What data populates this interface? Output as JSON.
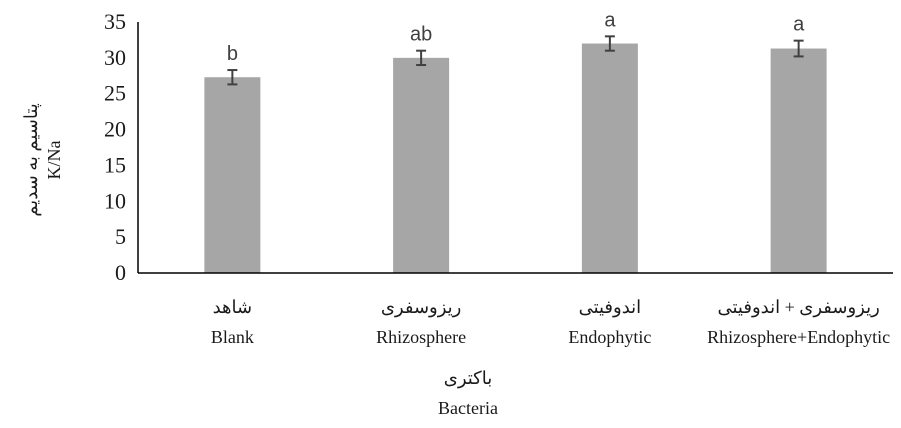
{
  "chart_data": {
    "type": "bar",
    "categories": [
      {
        "fa": "شاهد",
        "en": "Blank"
      },
      {
        "fa": "ریزوسفری",
        "en": "Rhizosphere"
      },
      {
        "fa": "اندوفیتی",
        "en": "Endophytic"
      },
      {
        "fa": "ریزوسفری + اندوفیتی",
        "en": "Rhizosphere+Endophytic"
      }
    ],
    "values": [
      27.3,
      30.0,
      32.0,
      31.3
    ],
    "errors": [
      1.0,
      1.0,
      1.0,
      1.1
    ],
    "significance_letters": [
      "b",
      "ab",
      "a",
      "a"
    ],
    "ylim": [
      0,
      35
    ],
    "yticks": [
      "0",
      "5",
      "10",
      "15",
      "20",
      "25",
      "30",
      "35"
    ],
    "ylabel": {
      "fa": "پتاسیم به سدیم",
      "en": "K/Na"
    },
    "xlabel": {
      "fa": "باکتری",
      "en": "Bacteria"
    },
    "grid": false,
    "legend": "none",
    "colors": {
      "bar": "#a6a6a6",
      "axis": "#000000",
      "error": "#404040",
      "text": "#1a1a1a"
    }
  }
}
